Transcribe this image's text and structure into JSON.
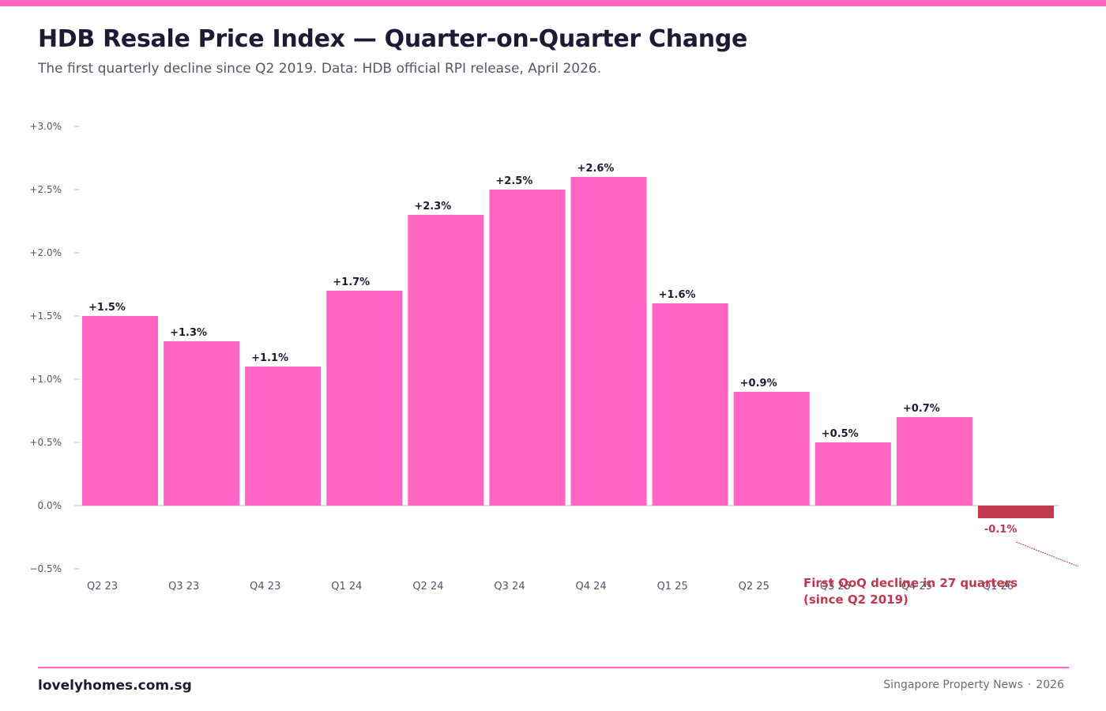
{
  "colors": {
    "accent": "#ff66c4",
    "negative": "#c0394e",
    "text_dark": "#1b1b33",
    "text_muted": "#55556a",
    "axis": "#bbbbbb"
  },
  "header": {
    "title": "HDB Resale Price Index — Quarter-on-Quarter Change",
    "subtitle": "The first quarterly decline since Q2 2019. Data: HDB official RPI release, April 2026."
  },
  "footer": {
    "brand": "lovelyhomes.com.sg",
    "source": "Singapore Property News",
    "separator": "·",
    "year": "2026"
  },
  "chart_data": {
    "type": "bar",
    "categories": [
      "Q2 23",
      "Q3 23",
      "Q4 23",
      "Q1 24",
      "Q2 24",
      "Q3 24",
      "Q4 24",
      "Q1 25",
      "Q2 25",
      "Q3 25",
      "Q4 25",
      "Q1 26"
    ],
    "values": [
      1.5,
      1.3,
      1.1,
      1.7,
      2.3,
      2.5,
      2.6,
      1.6,
      0.9,
      0.5,
      0.7,
      -0.1
    ],
    "value_labels": [
      "+1.5%",
      "+1.3%",
      "+1.1%",
      "+1.7%",
      "+2.3%",
      "+2.5%",
      "+2.6%",
      "+1.6%",
      "+0.9%",
      "+0.5%",
      "+0.7%",
      "-0.1%"
    ],
    "ylim": [
      -0.5,
      3.0
    ],
    "yticks": [
      -0.5,
      0.0,
      0.5,
      1.0,
      1.5,
      2.0,
      2.5,
      3.0
    ],
    "ytick_labels": [
      "−0.5%",
      "0.0%",
      "+0.5%",
      "+1.0%",
      "+1.5%",
      "+2.0%",
      "+2.5%",
      "+3.0%"
    ],
    "grid": false,
    "annotation": {
      "lines": [
        "First QoQ decline in 27 quarters",
        "(since Q2 2019)"
      ],
      "target_category": "Q1 26"
    }
  }
}
